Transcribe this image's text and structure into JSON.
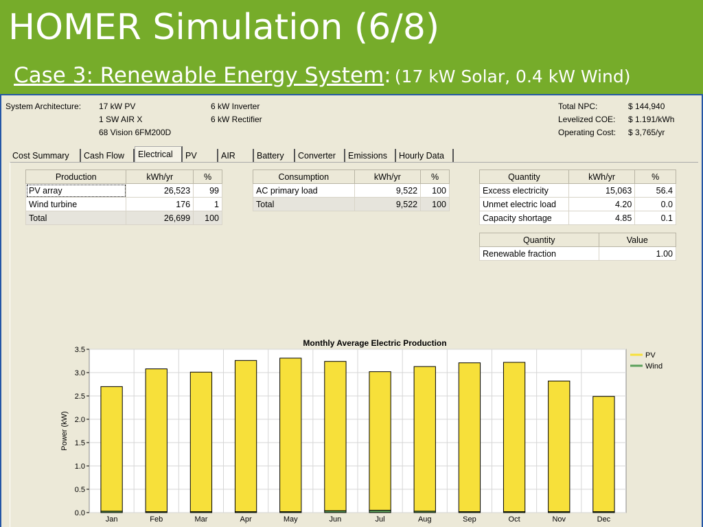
{
  "slide": {
    "title": "HOMER Simulation (6/8)",
    "subtitle_main": "Case 3: Renewable Energy System",
    "subtitle_colon": ":",
    "subtitle_detail": "(17 kW Solar, 0.4 kW Wind)",
    "background_color": "#76ac2a"
  },
  "architecture": {
    "label": "System Architecture:",
    "col1": [
      "17 kW PV",
      "1 SW AIR X",
      "68 Vision 6FM200D"
    ],
    "col2": [
      "6 kW Inverter",
      "6 kW Rectifier"
    ]
  },
  "economics": {
    "rows": [
      {
        "label": "Total NPC:",
        "value": "$ 144,940"
      },
      {
        "label": "Levelized COE:",
        "value": "$ 1.191/kWh"
      },
      {
        "label": "Operating Cost:",
        "value": "$ 3,765/yr"
      }
    ]
  },
  "tabs": [
    "Cost Summary",
    "Cash Flow",
    "Electrical",
    "PV",
    "AIR",
    "Battery",
    "Converter",
    "Emissions",
    "Hourly Data"
  ],
  "active_tab": "Electrical",
  "production": {
    "headers": [
      "Production",
      "kWh/yr",
      "%"
    ],
    "rows": [
      [
        "PV array",
        "26,523",
        "99"
      ],
      [
        "Wind turbine",
        "176",
        "1"
      ],
      [
        "Total",
        "26,699",
        "100"
      ]
    ]
  },
  "consumption": {
    "headers": [
      "Consumption",
      "kWh/yr",
      "%"
    ],
    "rows": [
      [
        "AC primary load",
        "9,522",
        "100"
      ],
      [
        "Total",
        "9,522",
        "100"
      ]
    ]
  },
  "quantity": {
    "headers": [
      "Quantity",
      "kWh/yr",
      "%"
    ],
    "rows": [
      [
        "Excess electricity",
        "15,063",
        "56.4"
      ],
      [
        "Unmet electric load",
        "4.20",
        "0.0"
      ],
      [
        "Capacity shortage",
        "4.85",
        "0.1"
      ]
    ]
  },
  "quantity_value": {
    "headers": [
      "Quantity",
      "Value"
    ],
    "rows": [
      [
        "Renewable fraction",
        "1.00"
      ]
    ]
  },
  "chart_data": {
    "type": "bar",
    "title": "Monthly Average Electric Production",
    "ylabel": "Power (kW)",
    "xlabel": "",
    "ylim": [
      0,
      3.5
    ],
    "yticks": [
      "0.0",
      "0.5",
      "1.0",
      "1.5",
      "2.0",
      "2.5",
      "3.0",
      "3.5"
    ],
    "categories": [
      "Jan",
      "Feb",
      "Mar",
      "Apr",
      "May",
      "Jun",
      "Jul",
      "Aug",
      "Sep",
      "Oct",
      "Nov",
      "Dec"
    ],
    "stacked": true,
    "grid": true,
    "legend_position": "top-right",
    "series": [
      {
        "name": "Wind",
        "color": "#5aa05a",
        "values": [
          0.03,
          0.02,
          0.02,
          0.02,
          0.02,
          0.04,
          0.05,
          0.03,
          0.02,
          0.02,
          0.02,
          0.02
        ]
      },
      {
        "name": "PV",
        "color": "#f7e03a",
        "values": [
          2.67,
          3.06,
          2.99,
          3.24,
          3.29,
          3.2,
          2.97,
          3.1,
          3.19,
          3.2,
          2.8,
          2.47
        ]
      }
    ],
    "legend": [
      {
        "name": "PV",
        "color": "#f7e03a"
      },
      {
        "name": "Wind",
        "color": "#5aa05a"
      }
    ]
  }
}
